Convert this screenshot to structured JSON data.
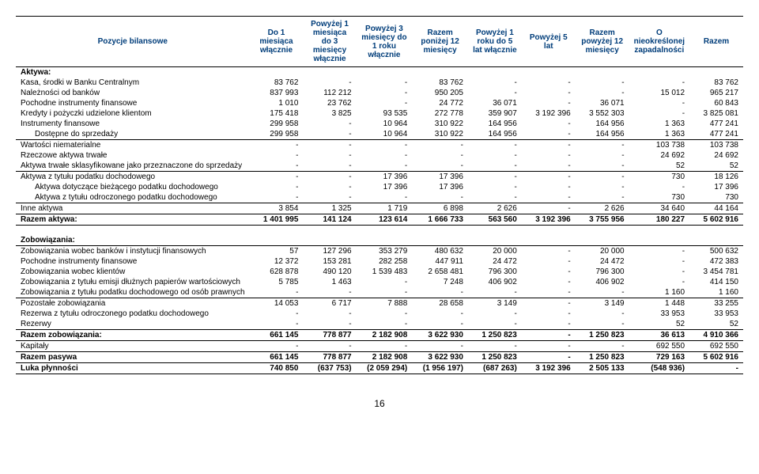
{
  "page_number": "16",
  "headers": [
    "Pozycje bilansowe",
    "Do 1 miesiąca włącznie",
    "Powyżej 1 miesiąca do 3 miesięcy włącznie",
    "Powyżej 3 miesięcy do 1 roku włącznie",
    "Razem poniżej 12 miesięcy",
    "Powyżej 1 roku do 5 lat włącznie",
    "Powyżej 5 lat",
    "Razem powyżej 12 miesięcy",
    "O nieokreślonej zapadalności",
    "Razem"
  ],
  "sections": [
    {
      "title": "Aktywa:",
      "rows": [
        {
          "label": "Kasa, środki w Banku Centralnym",
          "v": [
            "83 762",
            "-",
            "-",
            "83 762",
            "-",
            "-",
            "-",
            "-",
            "83 762"
          ]
        },
        {
          "label": "Należności od banków",
          "v": [
            "837 993",
            "112 212",
            "-",
            "950 205",
            "-",
            "-",
            "-",
            "15 012",
            "965 217"
          ]
        },
        {
          "label": "Pochodne instrumenty finansowe",
          "v": [
            "1 010",
            "23 762",
            "-",
            "24 772",
            "36 071",
            "-",
            "36 071",
            "-",
            "60 843"
          ]
        },
        {
          "label": "Kredyty i pożyczki udzielone klientom",
          "v": [
            "175 418",
            "3 825",
            "93 535",
            "272 778",
            "359 907",
            "3 192 396",
            "3 552 303",
            "-",
            "3 825 081"
          ]
        },
        {
          "label": "Instrumenty finansowe",
          "v": [
            "299 958",
            "-",
            "10 964",
            "310 922",
            "164 956",
            "-",
            "164 956",
            "1 363",
            "477 241"
          ]
        },
        {
          "label": "Dostępne do sprzedaży",
          "indent": true,
          "v": [
            "299 958",
            "-",
            "10 964",
            "310 922",
            "164 956",
            "-",
            "164 956",
            "1 363",
            "477 241"
          ]
        },
        {
          "label": "Wartości niematerialne",
          "sep": "top",
          "v": [
            "-",
            "-",
            "-",
            "-",
            "-",
            "-",
            "-",
            "103 738",
            "103 738"
          ]
        },
        {
          "label": "Rzeczowe aktywa trwałe",
          "v": [
            "-",
            "-",
            "-",
            "-",
            "-",
            "-",
            "-",
            "24 692",
            "24 692"
          ]
        },
        {
          "label": "Aktywa trwałe sklasyfikowane jako przeznaczone do sprzedaży",
          "v": [
            "-",
            "-",
            "-",
            "-",
            "-",
            "-",
            "-",
            "52",
            "52"
          ]
        },
        {
          "label": "Aktywa z tytułu podatku dochodowego",
          "sep": "top",
          "v": [
            "-",
            "-",
            "17 396",
            "17 396",
            "-",
            "-",
            "-",
            "730",
            "18 126"
          ]
        },
        {
          "label": "Aktywa dotyczące bieżącego podatku dochodowego",
          "indent": true,
          "v": [
            "-",
            "-",
            "17 396",
            "17 396",
            "-",
            "-",
            "-",
            "-",
            "17 396"
          ]
        },
        {
          "label": "Aktywa z tytułu odroczonego podatku dochodowego",
          "indent": true,
          "v": [
            "-",
            "-",
            "-",
            "-",
            "-",
            "-",
            "-",
            "730",
            "730"
          ]
        },
        {
          "label": "Inne aktywa",
          "sep": "top",
          "v": [
            "3 854",
            "1 325",
            "1 719",
            "6 898",
            "2 626",
            "-",
            "2 626",
            "34 640",
            "44 164"
          ]
        }
      ],
      "total": {
        "label": "Razem aktywa:",
        "v": [
          "1 401 995",
          "141 124",
          "123 614",
          "1 666 733",
          "563 560",
          "3 192 396",
          "3 755 956",
          "180 227",
          "5 602 916"
        ]
      }
    },
    {
      "title": "Zobowiązania:",
      "rows": [
        {
          "label": "Zobowiązania wobec banków i instytucji finansowych",
          "v": [
            "57",
            "127 296",
            "353 279",
            "480 632",
            "20 000",
            "-",
            "20 000",
            "-",
            "500 632"
          ]
        },
        {
          "label": "Pochodne instrumenty finansowe",
          "v": [
            "12 372",
            "153 281",
            "282 258",
            "447 911",
            "24 472",
            "-",
            "24 472",
            "-",
            "472 383"
          ]
        },
        {
          "label": "Zobowiązania wobec klientów",
          "v": [
            "628 878",
            "490 120",
            "1 539 483",
            "2 658 481",
            "796 300",
            "-",
            "796 300",
            "-",
            "3 454 781"
          ]
        },
        {
          "label": "Zobowiązania z tytułu emisji dłużnych papierów wartościowych",
          "v": [
            "5 785",
            "1 463",
            "-",
            "7 248",
            "406 902",
            "-",
            "406 902",
            "-",
            "414 150"
          ]
        },
        {
          "label": "Zobowiązania z tytułu podatku dochodowego od osób prawnych",
          "v": [
            "-",
            "-",
            "-",
            "-",
            "-",
            "-",
            "-",
            "1 160",
            "1 160"
          ]
        },
        {
          "label": "Pozostałe zobowiązania",
          "sep": "top",
          "v": [
            "14 053",
            "6 717",
            "7 888",
            "28 658",
            "3 149",
            "-",
            "3 149",
            "1 448",
            "33 255"
          ]
        },
        {
          "label": "Rezerwa z tytułu odroczonego podatku dochodowego",
          "v": [
            "-",
            "-",
            "-",
            "-",
            "-",
            "-",
            "-",
            "33 953",
            "33 953"
          ]
        },
        {
          "label": "Rezerwy",
          "v": [
            "-",
            "-",
            "-",
            "-",
            "-",
            "-",
            "-",
            "52",
            "52"
          ]
        }
      ],
      "total": {
        "label": "Razem zobowiązania:",
        "v": [
          "661 145",
          "778 877",
          "2 182 908",
          "3 622 930",
          "1 250 823",
          "-",
          "1 250 823",
          "36 613",
          "4 910 366"
        ]
      },
      "extra": [
        {
          "label": "Kapitały",
          "v": [
            "-",
            "-",
            "-",
            "-",
            "-",
            "-",
            "-",
            "692 550",
            "692 550"
          ]
        },
        {
          "label": "Razem pasywa",
          "bold": true,
          "v": [
            "661 145",
            "778 877",
            "2 182 908",
            "3 622 930",
            "1 250 823",
            "-",
            "1 250 823",
            "729 163",
            "5 602 916"
          ]
        },
        {
          "label": "Luka płynności",
          "bold": true,
          "v": [
            "740 850",
            "(637 753)",
            "(2 059 294)",
            "(1 956 197)",
            "(687 263)",
            "3 192 396",
            "2 505 133",
            "(548 936)",
            "-"
          ]
        }
      ]
    }
  ]
}
